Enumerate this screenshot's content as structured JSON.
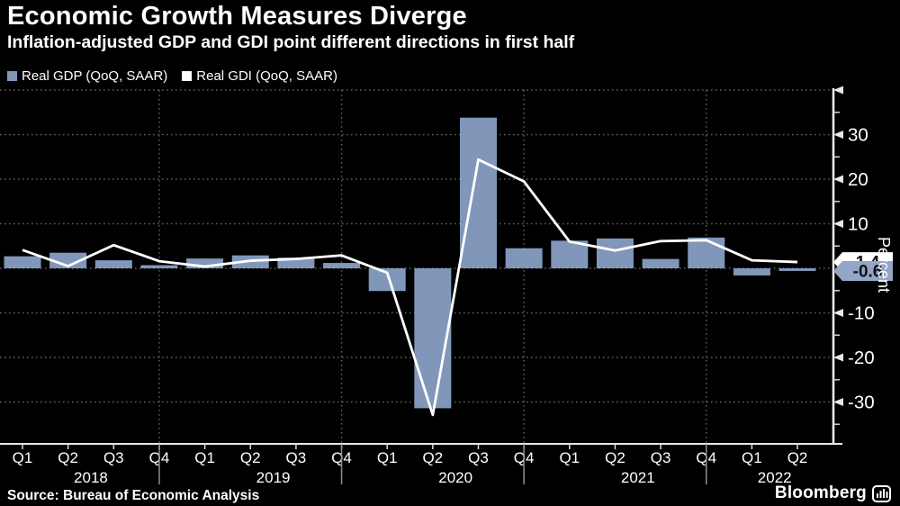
{
  "header": {
    "title": "Economic Growth Measures Diverge",
    "subtitle": "Inflation-adjusted GDP and GDI point different directions in first half"
  },
  "legend": {
    "items": [
      {
        "label": "Real GDP (QoQ, SAAR)",
        "color": "#8097BA"
      },
      {
        "label": "Real GDI (QoQ, SAAR)",
        "color": "#FFFFFF"
      }
    ]
  },
  "chart_data": {
    "type": "combo-bar-line",
    "categories": [
      "Q1",
      "Q2",
      "Q3",
      "Q4",
      "Q1",
      "Q2",
      "Q3",
      "Q4",
      "Q1",
      "Q2",
      "Q3",
      "Q4",
      "Q1",
      "Q2",
      "Q3",
      "Q4",
      "Q1",
      "Q2"
    ],
    "years": [
      {
        "label": "2018",
        "start": 0
      },
      {
        "label": "2019",
        "start": 4
      },
      {
        "label": "2020",
        "start": 8
      },
      {
        "label": "2021",
        "start": 12
      },
      {
        "label": "2022",
        "start": 16
      }
    ],
    "series": [
      {
        "name": "Real GDP (QoQ, SAAR)",
        "type": "bar",
        "color": "#8097BA",
        "values": [
          2.7,
          3.5,
          1.8,
          0.7,
          2.2,
          2.9,
          2.4,
          1.2,
          -5.1,
          -31.4,
          33.8,
          4.5,
          6.2,
          6.7,
          2.1,
          6.9,
          -1.6,
          -0.6
        ]
      },
      {
        "name": "Real GDI (QoQ, SAAR)",
        "type": "line",
        "color": "#FFFFFF",
        "values": [
          4.1,
          0.5,
          5.2,
          1.6,
          0.4,
          1.7,
          2.1,
          2.9,
          -1.0,
          -32.9,
          24.4,
          19.5,
          6.0,
          4.0,
          6.1,
          6.3,
          1.8,
          1.4
        ]
      }
    ],
    "title": "Economic Growth Measures Diverge",
    "xlabel": "",
    "ylabel": "Percent",
    "ylim": [
      -39.5,
      40.5
    ],
    "y_ticks_labeled": [
      30,
      20,
      10,
      -10,
      -20,
      -30
    ],
    "y_grid": [
      40,
      30,
      20,
      10,
      0,
      -10,
      -20,
      -30
    ],
    "y_minor_ticks": [
      35,
      25,
      15,
      5,
      -5,
      -15,
      -25,
      -35
    ],
    "grid": "dotted",
    "legend_position": "top-left",
    "end_labels": [
      {
        "text": "1.4",
        "value": 1.4,
        "bg": "#FFFFFF",
        "series": "Real GDI (QoQ, SAAR)"
      },
      {
        "text": "-0.6",
        "value": -0.6,
        "bg": "#93A6C5",
        "series": "Real GDP (QoQ, SAAR)"
      }
    ]
  },
  "footer": {
    "source": "Source: Bureau of Economic Analysis",
    "brand": "Bloomberg"
  }
}
